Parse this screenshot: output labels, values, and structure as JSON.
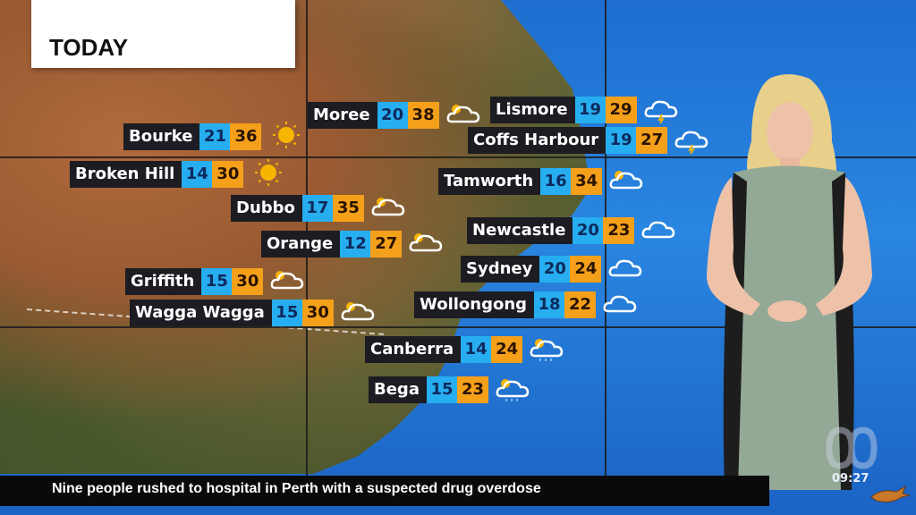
{
  "header": {
    "title": "TODAY"
  },
  "colors": {
    "min_temp": "#27aef0",
    "max_temp": "#f5a01a",
    "label_bg": "#1c1c22"
  },
  "cities": [
    {
      "name": "Bourke",
      "min": "21",
      "max": "36",
      "icon": "sun-icon"
    },
    {
      "name": "Broken Hill",
      "min": "14",
      "max": "30",
      "icon": "sun-icon"
    },
    {
      "name": "Moree",
      "min": "20",
      "max": "38",
      "icon": "partly-cloudy-icon"
    },
    {
      "name": "Dubbo",
      "min": "17",
      "max": "35",
      "icon": "partly-cloudy-icon"
    },
    {
      "name": "Orange",
      "min": "12",
      "max": "27",
      "icon": "partly-cloudy-icon"
    },
    {
      "name": "Griffith",
      "min": "15",
      "max": "30",
      "icon": "partly-cloudy-icon"
    },
    {
      "name": "Wagga Wagga",
      "min": "15",
      "max": "30",
      "icon": "partly-cloudy-icon"
    },
    {
      "name": "Lismore",
      "min": "19",
      "max": "29",
      "icon": "storm-icon"
    },
    {
      "name": "Coffs Harbour",
      "min": "19",
      "max": "27",
      "icon": "storm-icon"
    },
    {
      "name": "Tamworth",
      "min": "16",
      "max": "34",
      "icon": "partly-cloudy-icon"
    },
    {
      "name": "Newcastle",
      "min": "20",
      "max": "23",
      "icon": "cloud-icon"
    },
    {
      "name": "Sydney",
      "min": "20",
      "max": "24",
      "icon": "cloud-icon"
    },
    {
      "name": "Wollongong",
      "min": "18",
      "max": "22",
      "icon": "cloud-icon"
    },
    {
      "name": "Canberra",
      "min": "14",
      "max": "24",
      "icon": "partly-cloudy-showers-icon"
    },
    {
      "name": "Bega",
      "min": "15",
      "max": "23",
      "icon": "partly-cloudy-showers-icon"
    }
  ],
  "ticker": {
    "headline": "Nine people rushed to hospital in Perth with a suspected drug overdose"
  },
  "broadcast": {
    "clock": "09:27",
    "logo": "ABC"
  }
}
